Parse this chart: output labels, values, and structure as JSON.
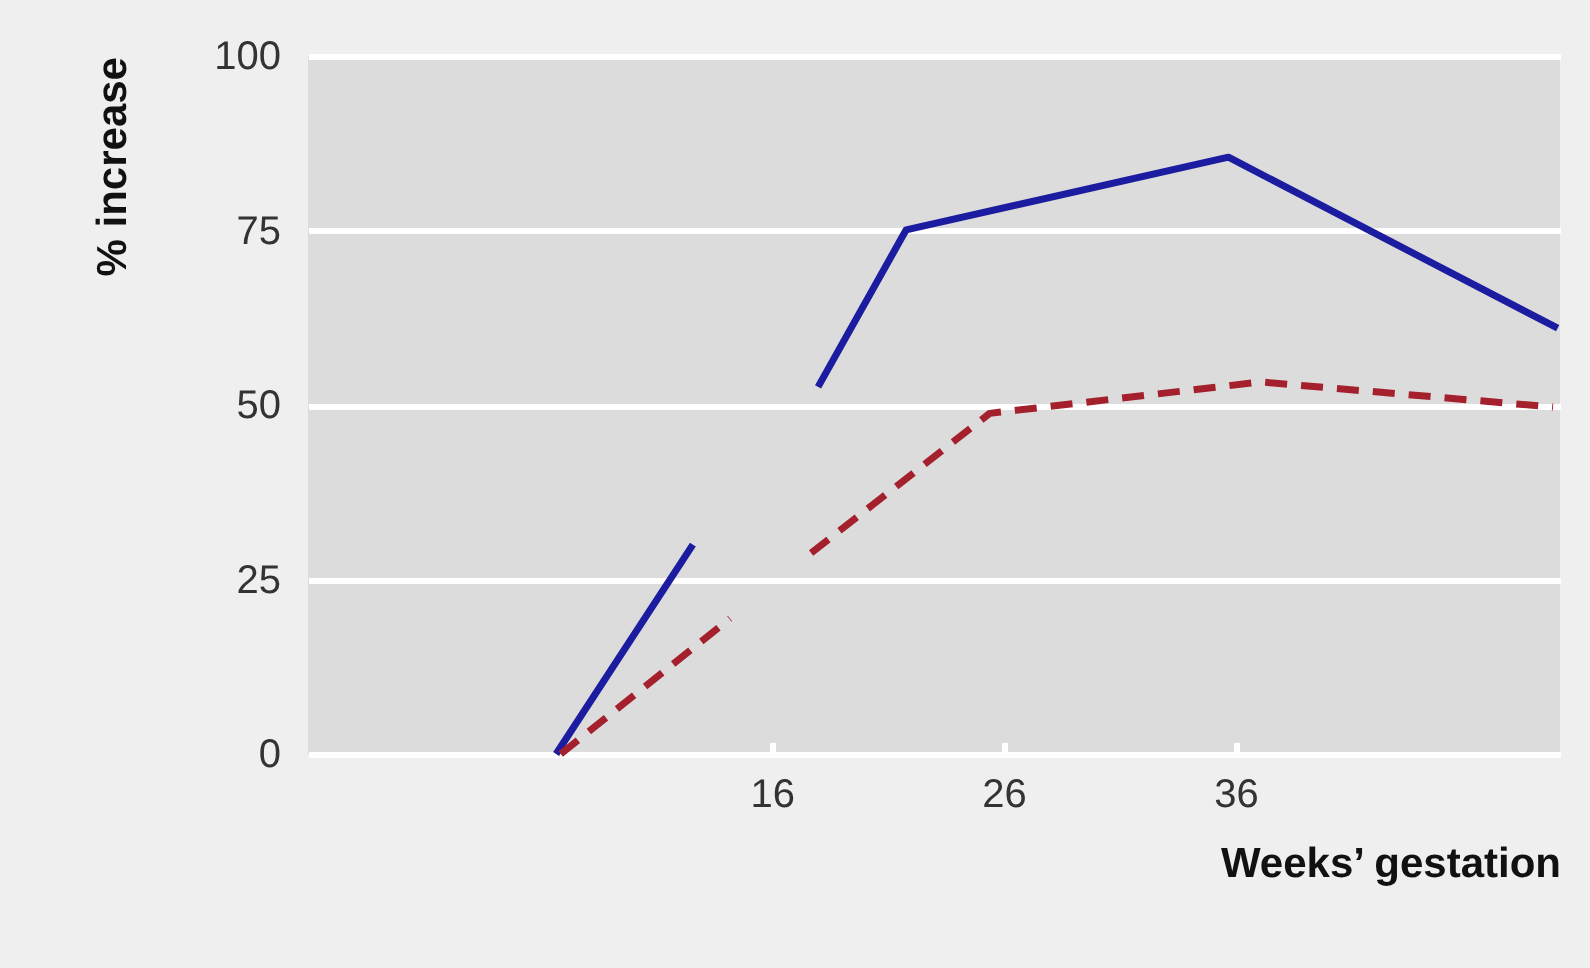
{
  "chart_data": {
    "type": "line",
    "xlabel": "Weeks’ gestation",
    "ylabel": "% increase",
    "xlim": [
      -4,
      50
    ],
    "xticks": [
      16,
      26,
      36
    ],
    "ylim": [
      0,
      100
    ],
    "yticks": [
      0,
      25,
      50,
      75,
      100
    ],
    "grid": "y",
    "series": [
      {
        "color": "#1c1ca0",
        "line_style": "solid",
        "x": [
          6.7,
          12.6,
          15,
          18.0,
          21.8,
          35.7,
          49.9
        ],
        "values": [
          0,
          30.0,
          null,
          52.6,
          75.1,
          85.5,
          61.0
        ]
      },
      {
        "color": "#a3202c",
        "line_style": "dashed",
        "x": [
          6.9,
          14.2,
          16,
          17.7,
          25.4,
          37.1,
          49.7
        ],
        "values": [
          0,
          19.4,
          null,
          28.8,
          48.8,
          53.3,
          49.7
        ]
      }
    ]
  }
}
